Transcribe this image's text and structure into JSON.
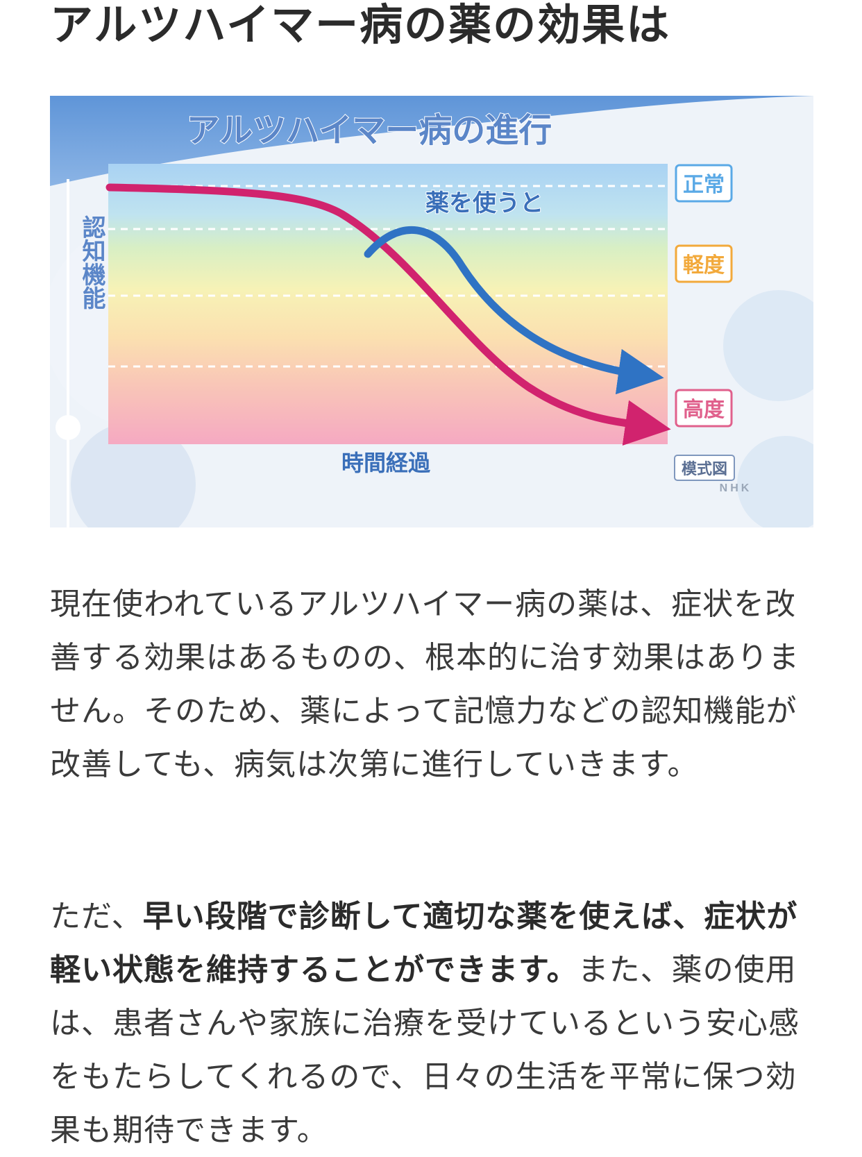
{
  "article": {
    "heading": "アルツハイマー病の薬の効果は",
    "paragraph1": "現在使われているアルツハイマー病の薬は、症状を改善する効果はあるものの、根本的に治す効果はありません。そのため、薬によって記憶力などの認知機能が改善しても、病気は次第に進行していきます。",
    "paragraph2_lead": "ただ、",
    "paragraph2_bold": "早い段階で診断して適切な薬を使えば、症状が軽い状態を維持することができます。",
    "paragraph2_rest": "また、薬の使用は、患者さんや家族に治療を受けているという安心感をもたらしてくれるので、日々の生活を平常に保つ効果も期待できます。"
  },
  "figure": {
    "title": "アルツハイマー病の進行",
    "y_axis_label": "認知機能",
    "x_axis_label": "時間経過",
    "curve_label": "薬を使うと",
    "levels": [
      "正常",
      "軽度",
      "高度"
    ],
    "note": "模式図",
    "logo": "NHK",
    "colors": {
      "untreated_curve": "#d1236e",
      "treated_curve": "#2f73c4",
      "title_fill": "#5b86c8",
      "level_normal": "#5aa9e6",
      "level_mild": "#f2a93b",
      "level_severe": "#e0608c"
    }
  }
}
